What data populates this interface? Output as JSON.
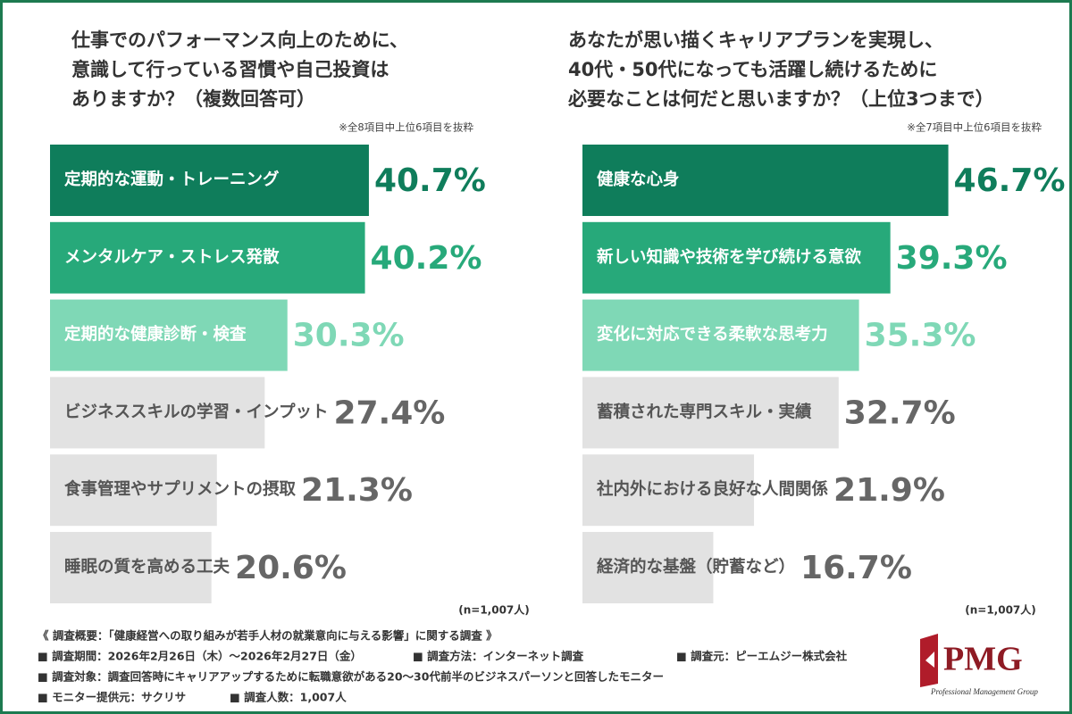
{
  "chart_data": [
    {
      "type": "bar",
      "orientation": "horizontal",
      "title_lines": [
        "仕事でのパフォーマンス向上のために、",
        "意識して行っている習慣や自己投資は",
        "ありますか？（複数回答可）"
      ],
      "note": "※全8項目中上位6項目を抜粋",
      "sample_size": "(n=1,007人)",
      "categories": [
        "定期的な運動・トレーニング",
        "メンタルケア・ストレス発散",
        "定期的な健康診断・検査",
        "ビジネススキルの学習・インプット",
        "食事管理やサプリメントの摂取",
        "睡眠の質を高める工夫"
      ],
      "values": [
        40.7,
        40.2,
        30.3,
        27.4,
        21.3,
        20.6
      ],
      "value_labels": [
        "40.7%",
        "40.2%",
        "30.3%",
        "27.4%",
        "21.3%",
        "20.6%"
      ],
      "colors": [
        "#0f7d5b",
        "#27a97a",
        "#7fd8b6",
        "#e2e2e2",
        "#e2e2e2",
        "#e2e2e2"
      ],
      "text_colors": [
        "#ffffff",
        "#ffffff",
        "#ffffff",
        "#555555",
        "#555555",
        "#555555"
      ],
      "label_colors": [
        "#0f7d5b",
        "#27a97a",
        "#7fd8b6",
        "#666666",
        "#666666",
        "#666666"
      ]
    },
    {
      "type": "bar",
      "orientation": "horizontal",
      "title_lines": [
        "あなたが思い描くキャリアプランを実現し、",
        "40代・50代になっても活躍し続けるために",
        "必要なことは何だと思いますか？（上位3つまで）"
      ],
      "note": "※全7項目中上位6項目を抜粋",
      "sample_size": "(n=1,007人)",
      "categories": [
        "健康な心身",
        "新しい知識や技術を学び続ける意欲",
        "変化に対応できる柔軟な思考力",
        "蓄積された専門スキル・実績",
        "社内外における良好な人間関係",
        "経済的な基盤（貯蓄など）"
      ],
      "values": [
        46.7,
        39.3,
        35.3,
        32.7,
        21.9,
        16.7
      ],
      "value_labels": [
        "46.7%",
        "39.3%",
        "35.3%",
        "32.7%",
        "21.9%",
        "16.7%"
      ],
      "colors": [
        "#0f7d5b",
        "#27a97a",
        "#7fd8b6",
        "#e2e2e2",
        "#e2e2e2",
        "#e2e2e2"
      ],
      "text_colors": [
        "#ffffff",
        "#ffffff",
        "#ffffff",
        "#555555",
        "#555555",
        "#555555"
      ],
      "label_colors": [
        "#0f7d5b",
        "#27a97a",
        "#7fd8b6",
        "#666666",
        "#666666",
        "#666666"
      ]
    }
  ],
  "footer": {
    "heading": "《 調査概要：「健康経営への取り組みが若手人材の就業意向に与える影響」に関する調査 》",
    "items": [
      "■ 調査期間：2026年2月26日（木）～2026年2月27日（金）",
      "■ 調査方法：インターネット調査",
      "■ 調査元：ピーエムジー株式会社",
      "■ 調査対象：調査回答時にキャリアアップするために転職意欲がある20～30代前半のビジネスパーソンと回答したモニター",
      "■ モニター提供元：サクリサ",
      "■ 調査人数：1,007人"
    ]
  },
  "logo": {
    "name": "PMG",
    "subtitle": "Professional Management Group"
  }
}
